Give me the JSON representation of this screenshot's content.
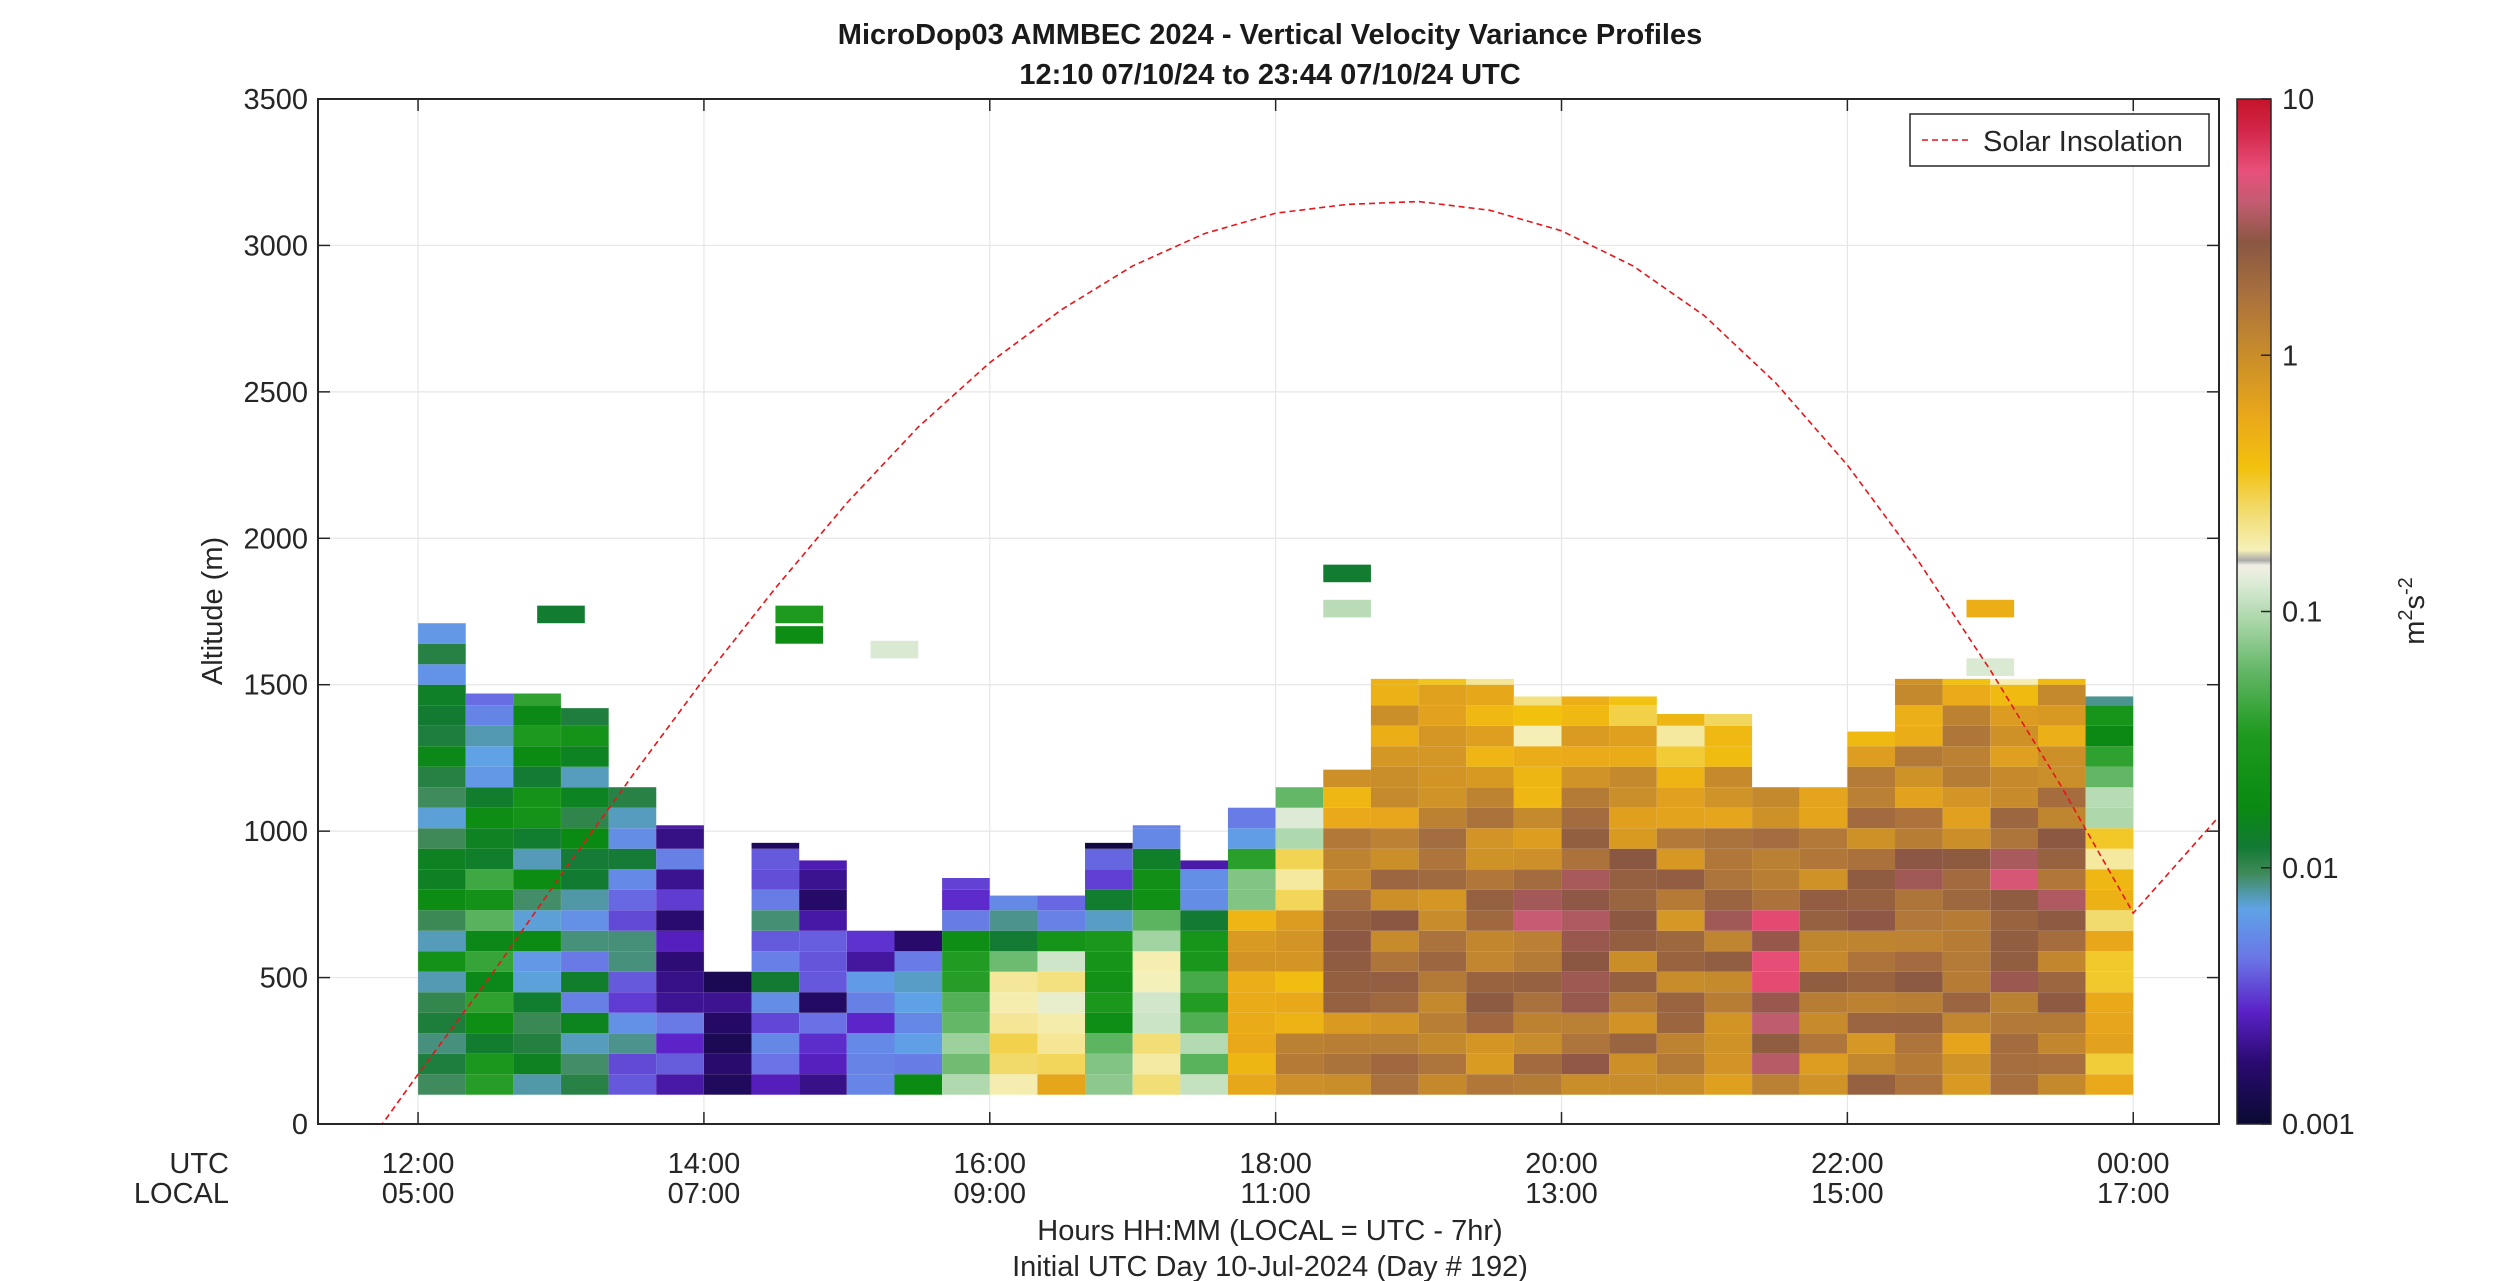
{
  "title_line1": "MicroDop03 AMMBEC 2024 - Vertical Velocity Variance Profiles",
  "title_line2": "12:10 07/10/24 to 23:44 07/10/24  UTC",
  "ylabel": "Altitude (m)",
  "xlabel_line1": "Hours HH:MM  (LOCAL = UTC - 7hr)",
  "xlabel_line2": "Initial UTC Day 10-Jul-2024 (Day # 192)",
  "row_label_utc": "UTC",
  "row_label_local": "LOCAL",
  "legend_label": "Solar Insolation",
  "colorbar_label_base": "m",
  "colorbar_label_sup1": "2",
  "colorbar_label_mid": "s",
  "colorbar_label_sup2": "-2",
  "colors": {
    "insolation_line": "#e8141a",
    "grid": "#e6e6e6",
    "axes": "#262626"
  },
  "chart_data": {
    "type": "heatmap",
    "xlim_hours": [
      11.3,
      24.6
    ],
    "ylim": [
      0,
      3500
    ],
    "yticks": [
      0,
      500,
      1000,
      1500,
      2000,
      2500,
      3000,
      3500
    ],
    "ytick_labels": [
      "0",
      "500",
      "1000",
      "1500",
      "2000",
      "2500",
      "3000",
      "3500"
    ],
    "xticks": [
      12,
      14,
      16,
      18,
      20,
      22,
      24
    ],
    "xtick_utc_labels": [
      "12:00",
      "14:00",
      "16:00",
      "18:00",
      "20:00",
      "22:00",
      "00:00"
    ],
    "xtick_local_labels": [
      "05:00",
      "07:00",
      "09:00",
      "11:00",
      "13:00",
      "15:00",
      "17:00"
    ],
    "colorbar": {
      "scale": "log",
      "range": [
        0.001,
        10
      ],
      "tick_values": [
        0.001,
        0.01,
        0.1,
        1,
        10
      ],
      "tick_labels": [
        "0.001",
        "0.01",
        "0.1",
        "1",
        "10"
      ]
    },
    "grid": true,
    "legend_position": "top-right",
    "insolation_curve": {
      "name": "Solar Insolation",
      "style": "dashed",
      "x": [
        11.3,
        11.5,
        11.75,
        12,
        12.5,
        13,
        13.5,
        14,
        14.5,
        15,
        15.5,
        16,
        16.5,
        17,
        17.5,
        18,
        18.5,
        19,
        19.5,
        20,
        20.5,
        21,
        21.5,
        22,
        22.5,
        23,
        23.5,
        24,
        24.6
      ],
      "y": [
        0,
        0,
        0,
        170,
        500,
        850,
        1190,
        1520,
        1830,
        2120,
        2380,
        2600,
        2780,
        2930,
        3040,
        3110,
        3140,
        3150,
        3120,
        3050,
        2930,
        2760,
        2530,
        2250,
        1920,
        1550,
        1150,
        720,
        1050
      ]
    },
    "time_bins_hours": [
      12.167,
      12.5,
      12.833,
      13.167,
      13.5,
      13.833,
      14.167,
      14.5,
      14.833,
      15.167,
      15.5,
      15.833,
      16.167,
      16.5,
      16.833,
      17.167,
      17.5,
      17.833,
      18.167,
      18.5,
      18.833,
      19.167,
      19.5,
      19.833,
      20.167,
      20.5,
      20.833,
      21.167,
      21.5,
      21.833,
      22.167,
      22.5,
      22.833,
      23.167,
      23.5,
      23.833
    ],
    "altitude_bin_m": 70,
    "profiles": [
      {
        "t": 12.167,
        "top": 1710,
        "tops": [
          1690,
          1620,
          1540,
          1470
        ],
        "l": [
          -2.1,
          -0.9,
          -1.4,
          -2.0
        ],
        "base": -1.75
      },
      {
        "t": 12.5,
        "top": 1470,
        "l": [
          -2.4,
          -1.6,
          -1.5
        ],
        "base": -1.7
      },
      {
        "t": 12.833,
        "top": 1470,
        "l": [
          -1.6,
          -1.45,
          -1.9,
          -2.0
        ],
        "base": -1.85
      },
      {
        "t": 13.167,
        "top": 1420,
        "l": [
          -1.8,
          -1.9,
          -2.1
        ],
        "base": -2.0
      },
      {
        "t": 13.5,
        "top": 1150,
        "l": [
          -2.0,
          -2.1,
          -2.2
        ],
        "base": -2.35
      },
      {
        "t": 13.833,
        "top": 1020,
        "l": [
          -2.6,
          -3.0,
          -2.5
        ],
        "base": -2.6
      },
      {
        "t": 14.167,
        "top": 520,
        "l": [
          -3.0,
          -2.9
        ],
        "base": -2.9
      },
      {
        "t": 14.5,
        "top": 960,
        "l": [
          -2.6,
          -2.3,
          -2.1
        ],
        "base": -2.4
      },
      {
        "t": 14.833,
        "top": 900,
        "l": [
          -2.9,
          -2.8,
          -2.5
        ],
        "base": -2.6
      },
      {
        "t": 15.167,
        "top": 660,
        "l": [
          -2.9,
          -2.7,
          -2.3
        ],
        "base": -2.3
      },
      {
        "t": 15.5,
        "top": 660,
        "l": [
          -2.7,
          -2.5,
          -2.2
        ],
        "base": -2.0
      },
      {
        "t": 15.833,
        "top": 840,
        "l": [
          -2.8,
          -2.6,
          -1.5
        ],
        "base": -1.2
      },
      {
        "t": 16.167,
        "top": 780,
        "l": [
          -2.7,
          -2.4,
          -0.9
        ],
        "base": -0.6
      },
      {
        "t": 16.5,
        "top": 780,
        "l": [
          -2.9,
          -2.2,
          -0.6
        ],
        "base": -0.5
      },
      {
        "t": 16.833,
        "top": 960,
        "l": [
          -2.8,
          -2.3,
          -1.6
        ],
        "base": -1.3
      },
      {
        "t": 17.167,
        "top": 1020,
        "l": [
          -2.6,
          -2.1,
          -1.0
        ],
        "base": -0.6
      },
      {
        "t": 17.5,
        "top": 900,
        "l": [
          -2.7,
          -2.0,
          -1.4
        ],
        "base": -1.2
      },
      {
        "t": 17.833,
        "top": 1080,
        "l": [
          -2.6,
          -0.5,
          -0.3
        ],
        "base": -0.2
      },
      {
        "t": 18.167,
        "top": 1150,
        "l": [
          -1.3,
          -0.6,
          -0.2
        ],
        "base": -0.1
      },
      {
        "t": 18.5,
        "top": 1210,
        "l": [
          -0.2,
          0.1,
          0.2
        ],
        "base": 0.1
      },
      {
        "t": 18.833,
        "top": 1520,
        "l": [
          -0.4,
          -0.9,
          0.2
        ],
        "base": 0.1
      },
      {
        "t": 19.167,
        "top": 1520,
        "l": [
          -0.5,
          -0.3,
          0.2
        ],
        "base": 0.0
      },
      {
        "t": 19.5,
        "top": 1520,
        "l": [
          -0.6,
          0.1,
          0.3
        ],
        "base": 0.1
      },
      {
        "t": 19.833,
        "top": 1460,
        "l": [
          -0.9,
          0.2,
          0.4
        ],
        "base": 0.2
      },
      {
        "t": 20.167,
        "top": 1460,
        "l": [
          -0.4,
          0.3,
          0.5
        ],
        "base": 0.2
      },
      {
        "t": 20.5,
        "top": 1460,
        "l": [
          -0.5,
          0.1,
          0.3
        ],
        "base": 0.1
      },
      {
        "t": 20.833,
        "top": 1400,
        "l": [
          -0.6,
          0.0,
          0.2
        ],
        "base": 0.0
      },
      {
        "t": 21.167,
        "top": 1400,
        "l": [
          -0.5,
          0.2,
          0.3
        ],
        "base": 0.1
      },
      {
        "t": 21.5,
        "top": 1150,
        "l": [
          -0.2,
          0.2,
          0.6
        ],
        "base": 0.3
      },
      {
        "t": 21.833,
        "top": 1150,
        "l": [
          0.0,
          0.1,
          0.2
        ],
        "base": 0.0
      },
      {
        "t": 22.167,
        "top": 1340,
        "l": [
          -0.2,
          0.2,
          0.4
        ],
        "base": 0.1
      },
      {
        "t": 22.5,
        "top": 1520,
        "l": [
          -0.3,
          0.1,
          0.3
        ],
        "base": 0.1
      },
      {
        "t": 22.833,
        "top": 1520,
        "l": [
          -0.2,
          0.0,
          0.2
        ],
        "base": 0.0
      },
      {
        "t": 23.167,
        "top": 1520,
        "l": [
          -0.6,
          0.1,
          0.5
        ],
        "base": 0.3
      },
      {
        "t": 23.5,
        "top": 1520,
        "l": [
          -0.3,
          0.1,
          0.3
        ],
        "base": 0.2
      },
      {
        "t": 23.833,
        "top": 1460,
        "l": [
          -1.9,
          -0.9,
          -0.4
        ],
        "base": -0.3
      }
    ],
    "isolated_cells": [
      {
        "t": 13.0,
        "alt": 1740,
        "log10": -1.9
      },
      {
        "t": 14.667,
        "alt": 1740,
        "log10": -1.5
      },
      {
        "t": 14.667,
        "alt": 1670,
        "log10": -1.7
      },
      {
        "t": 15.333,
        "alt": 1620,
        "log10": -0.9
      },
      {
        "t": 18.5,
        "alt": 1880,
        "log10": -1.9
      },
      {
        "t": 18.5,
        "alt": 1760,
        "log10": -1.0
      },
      {
        "t": 23.0,
        "alt": 1760,
        "log10": -0.3
      },
      {
        "t": 23.0,
        "alt": 1560,
        "log10": -0.9
      }
    ]
  }
}
